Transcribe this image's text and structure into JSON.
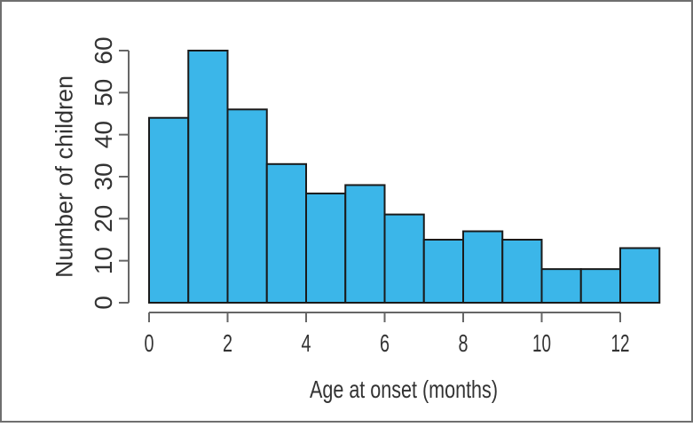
{
  "chart_data": {
    "type": "bar",
    "subtype": "histogram",
    "title": "",
    "xlabel": "Age at onset (months)",
    "ylabel": "Number of children",
    "bin_edges": [
      0,
      1,
      2,
      3,
      4,
      5,
      6,
      7,
      8,
      9,
      10,
      11,
      12,
      13
    ],
    "categories": [
      "0-1",
      "1-2",
      "2-3",
      "3-4",
      "4-5",
      "5-6",
      "6-7",
      "7-8",
      "8-9",
      "9-10",
      "10-11",
      "11-12",
      "12-13"
    ],
    "values": [
      44,
      60,
      46,
      33,
      26,
      28,
      21,
      15,
      17,
      15,
      8,
      8,
      13
    ],
    "xlim": [
      0,
      13
    ],
    "ylim": [
      0,
      60
    ],
    "x_ticks": [
      0,
      2,
      4,
      6,
      8,
      10,
      12
    ],
    "y_ticks": [
      0,
      10,
      20,
      30,
      40,
      50,
      60
    ],
    "grid": false,
    "legend": "none",
    "colors": {
      "bar_fill": "#3BB6E9",
      "bar_stroke": "#1A1A1A",
      "axis": "#666666",
      "text": "#333333",
      "background": "#FFFFFF",
      "frame_border": "#6F6F6F"
    }
  }
}
